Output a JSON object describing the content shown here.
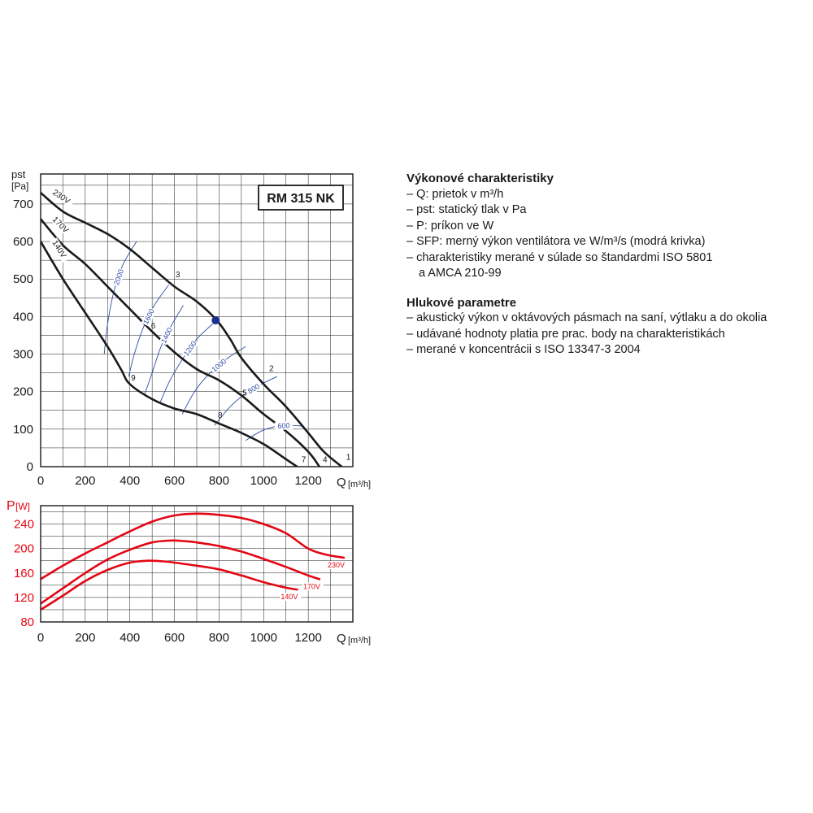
{
  "chart_data": [
    {
      "type": "line",
      "title": "RM 315 NK",
      "xlabel": "Q [m³/h]",
      "ylabel": "pst [Pa]",
      "xlim": [
        0,
        1400
      ],
      "ylim": [
        0,
        780
      ],
      "x_ticks": [
        "0",
        "200",
        "400",
        "600",
        "800",
        "1000",
        "1200"
      ],
      "y_ticks": [
        "0",
        "100",
        "200",
        "300",
        "400",
        "500",
        "600",
        "700"
      ],
      "grid": true,
      "series": [
        {
          "name": "230V",
          "x": [
            0,
            100,
            200,
            300,
            400,
            500,
            600,
            700,
            790,
            850,
            900,
            1000,
            1100,
            1200,
            1270,
            1350
          ],
          "y": [
            730,
            680,
            650,
            620,
            580,
            530,
            480,
            440,
            390,
            340,
            290,
            220,
            160,
            90,
            40,
            0
          ]
        },
        {
          "name": "170V",
          "x": [
            0,
            100,
            200,
            300,
            400,
            500,
            600,
            700,
            800,
            900,
            1000,
            1100,
            1200,
            1250
          ],
          "y": [
            660,
            590,
            540,
            480,
            420,
            360,
            305,
            260,
            230,
            190,
            140,
            95,
            40,
            0
          ]
        },
        {
          "name": "140V",
          "x": [
            0,
            100,
            200,
            300,
            360,
            400,
            500,
            600,
            700,
            800,
            900,
            1000,
            1100,
            1150
          ],
          "y": [
            600,
            500,
            410,
            320,
            260,
            220,
            180,
            155,
            140,
            115,
            90,
            60,
            20,
            0
          ]
        }
      ],
      "sfp_curves": [
        {
          "label": "2000",
          "x": [
            285,
            300,
            330,
            370,
            430
          ],
          "y": [
            300,
            380,
            470,
            540,
            600
          ]
        },
        {
          "label": "1600",
          "x": [
            395,
            420,
            460,
            510,
            575
          ],
          "y": [
            240,
            300,
            370,
            430,
            485
          ]
        },
        {
          "label": "1400",
          "x": [
            465,
            500,
            540,
            590,
            640
          ],
          "y": [
            190,
            250,
            320,
            380,
            430
          ]
        },
        {
          "label": "1200",
          "x": [
            535,
            580,
            640,
            700,
            780
          ],
          "y": [
            170,
            230,
            290,
            340,
            385
          ]
        },
        {
          "label": "1000",
          "x": [
            635,
            690,
            760,
            840,
            920
          ],
          "y": [
            140,
            200,
            250,
            290,
            320
          ]
        },
        {
          "label": "800",
          "x": [
            780,
            850,
            920,
            990,
            1060
          ],
          "y": [
            110,
            160,
            195,
            220,
            240
          ]
        },
        {
          "label": "600",
          "x": [
            920,
            990,
            1060,
            1120,
            1180
          ],
          "y": [
            70,
            95,
            108,
            110,
            108
          ]
        }
      ],
      "work_points": [
        {
          "label": "1",
          "x": 1370,
          "y": 18
        },
        {
          "label": "2",
          "x": 1025,
          "y": 255
        },
        {
          "label": "3",
          "x": 605,
          "y": 505
        },
        {
          "label": "4",
          "x": 1265,
          "y": 12
        },
        {
          "label": "5",
          "x": 905,
          "y": 190
        },
        {
          "label": "6",
          "x": 495,
          "y": 368
        },
        {
          "label": "7",
          "x": 1170,
          "y": 12
        },
        {
          "label": "8",
          "x": 795,
          "y": 130
        },
        {
          "label": "9",
          "x": 405,
          "y": 230
        }
      ],
      "operating_point": {
        "x": 785,
        "y": 390
      }
    },
    {
      "type": "line",
      "title": "",
      "xlabel": "Q [m³/h]",
      "ylabel": "P[W]",
      "xlim": [
        0,
        1400
      ],
      "ylim": [
        80,
        270
      ],
      "x_ticks": [
        "0",
        "200",
        "400",
        "600",
        "800",
        "1000",
        "1200"
      ],
      "y_ticks": [
        "80",
        "120",
        "160",
        "200",
        "240"
      ],
      "grid": true,
      "series": [
        {
          "name": "230V",
          "x": [
            0,
            100,
            200,
            300,
            400,
            500,
            600,
            700,
            800,
            900,
            1000,
            1100,
            1200,
            1280,
            1360
          ],
          "y": [
            150,
            172,
            192,
            210,
            228,
            244,
            254,
            257,
            255,
            250,
            240,
            225,
            200,
            190,
            185
          ]
        },
        {
          "name": "170V",
          "x": [
            0,
            100,
            200,
            300,
            400,
            500,
            580,
            650,
            700,
            800,
            900,
            1000,
            1100,
            1200,
            1250
          ],
          "y": [
            110,
            135,
            160,
            182,
            198,
            210,
            213,
            212,
            210,
            204,
            195,
            183,
            170,
            156,
            150
          ]
        },
        {
          "name": "140V",
          "x": [
            0,
            100,
            200,
            300,
            400,
            480,
            550,
            600,
            700,
            800,
            900,
            1000,
            1100,
            1150
          ],
          "y": [
            100,
            123,
            147,
            165,
            177,
            180,
            179,
            177,
            172,
            166,
            156,
            145,
            136,
            133
          ]
        }
      ]
    }
  ],
  "chart_labels": {
    "main_title": "RM 315 NK",
    "pst_label": "pst",
    "pa_label": "[Pa]",
    "p_label": "P",
    "w_label": "[W]",
    "q_label": "Q",
    "q_unit": "[m³/h]"
  },
  "legend": {
    "performance_heading": "Výkonové charakteristiky",
    "performance_items": [
      "– Q: prietok v m³/h",
      "– pst: statický tlak v Pa",
      "– P: príkon ve W",
      "– SFP: merný výkon ventilátora ve W/m³/s (modrá krivka)",
      "– charakteristiky merané v súlade so štandardmi ISO 5801"
    ],
    "performance_item_continuation": "a AMCA 210-99",
    "noise_heading": "Hlukové parametre",
    "noise_items": [
      "– akustický výkon v oktávových pásmach na saní, výtlaku a do okolia",
      "– udávané hodnoty platia pre prac. body na charakteristikách",
      "– merané v koncentrácii s ISO 13347-3 2004"
    ]
  },
  "colors": {
    "curve": "#1a1a1a",
    "sfp": "#2f4ea3",
    "power": "#e30613",
    "operating_point": "#1b2f8f",
    "grid": "#1a1a1a"
  }
}
